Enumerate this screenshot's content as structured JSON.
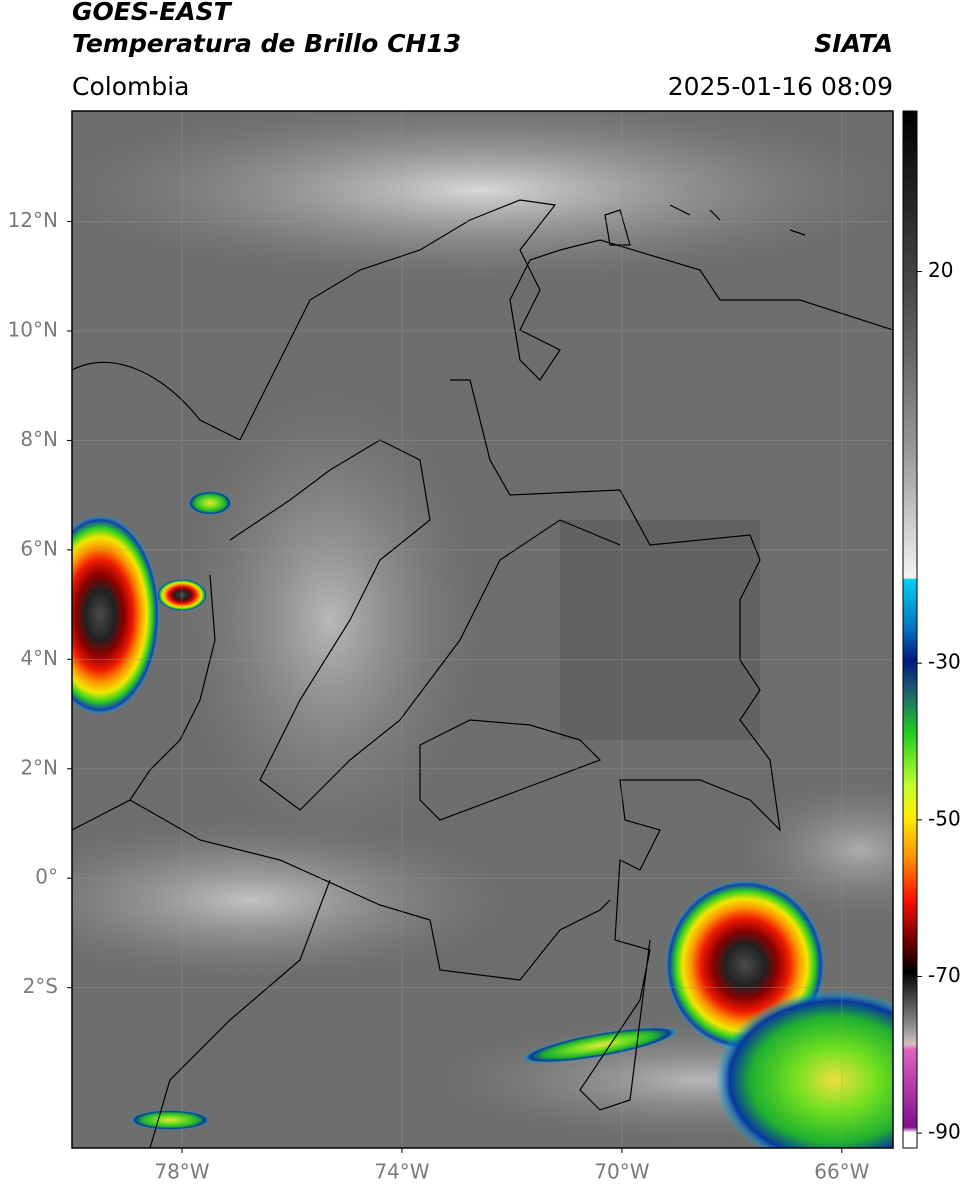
{
  "header": {
    "title": "GOES-EAST",
    "subtitle": "Temperatura de Brillo CH13",
    "source": "SIATA",
    "region": "Colombia",
    "timestamp": "2025-01-16 08:09"
  },
  "map": {
    "latlim": [
      -4.93,
      14.02
    ],
    "lonlim": [
      -80,
      -65.07
    ],
    "lat_ticks": [
      {
        "value": 12,
        "label": "12°N"
      },
      {
        "value": 10,
        "label": "10°N"
      },
      {
        "value": 8,
        "label": "8°N"
      },
      {
        "value": 6,
        "label": "6°N"
      },
      {
        "value": 4,
        "label": "4°N"
      },
      {
        "value": 2,
        "label": "2°N"
      },
      {
        "value": 0,
        "label": "0°"
      },
      {
        "value": -2,
        "label": "2°S"
      }
    ],
    "lon_ticks": [
      {
        "value": -78,
        "label": "78°W"
      },
      {
        "value": -74,
        "label": "74°W"
      },
      {
        "value": -70,
        "label": "70°W"
      },
      {
        "value": -66,
        "label": "66°W"
      }
    ],
    "grid": true
  },
  "colorbar": {
    "lim": [
      -91.9,
      40.5
    ],
    "ticks": [
      20,
      -30,
      -50,
      -70,
      -90
    ]
  }
}
